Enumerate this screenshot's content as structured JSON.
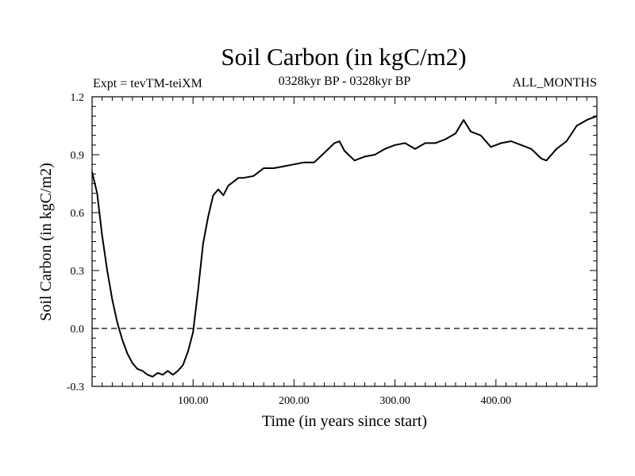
{
  "chart_data": {
    "type": "line",
    "title": "Soil Carbon (in kgC/m2)",
    "subtitle_left": "Expt = tevTM-teiXM",
    "subtitle_center": "0328kyr BP - 0328kyr BP",
    "subtitle_right": "ALL_MONTHS",
    "xlabel": "Time (in years since start)",
    "ylabel": "Soil Carbon (in kgC/m2)",
    "xlim": [
      0,
      500
    ],
    "ylim": [
      -0.3,
      1.2
    ],
    "xticks": [
      100,
      200,
      300,
      400
    ],
    "xtick_labels": [
      "100.00",
      "200.00",
      "300.00",
      "400.00"
    ],
    "yticks": [
      -0.3,
      0.0,
      0.3,
      0.6,
      0.9,
      1.2
    ],
    "ytick_labels": [
      "-0.3",
      "0.0",
      "0.3",
      "0.6",
      "0.9",
      "1.2"
    ],
    "reference_line": {
      "y": 0.0,
      "style": "dashed"
    },
    "series": [
      {
        "x": [
          0,
          5,
          10,
          15,
          20,
          25,
          30,
          35,
          40,
          45,
          50,
          55,
          60,
          65,
          70,
          75,
          80,
          85,
          90,
          95,
          100,
          105,
          110,
          115,
          120,
          125,
          130,
          135,
          140,
          145,
          150,
          160,
          170,
          180,
          190,
          200,
          210,
          220,
          230,
          240,
          245,
          250,
          260,
          270,
          280,
          290,
          300,
          310,
          320,
          330,
          340,
          350,
          360,
          368,
          375,
          385,
          395,
          405,
          415,
          425,
          435,
          445,
          450,
          460,
          470,
          480,
          490,
          500
        ],
        "y": [
          0.81,
          0.7,
          0.48,
          0.3,
          0.15,
          0.03,
          -0.06,
          -0.13,
          -0.18,
          -0.21,
          -0.22,
          -0.24,
          -0.25,
          -0.23,
          -0.24,
          -0.22,
          -0.24,
          -0.22,
          -0.19,
          -0.12,
          -0.02,
          0.2,
          0.44,
          0.58,
          0.69,
          0.72,
          0.69,
          0.74,
          0.76,
          0.78,
          0.78,
          0.79,
          0.83,
          0.83,
          0.84,
          0.85,
          0.86,
          0.86,
          0.91,
          0.96,
          0.97,
          0.92,
          0.87,
          0.89,
          0.9,
          0.93,
          0.95,
          0.96,
          0.93,
          0.96,
          0.96,
          0.98,
          1.01,
          1.08,
          1.02,
          1.0,
          0.94,
          0.96,
          0.97,
          0.95,
          0.93,
          0.88,
          0.87,
          0.93,
          0.97,
          1.05,
          1.08,
          1.1
        ]
      }
    ]
  }
}
